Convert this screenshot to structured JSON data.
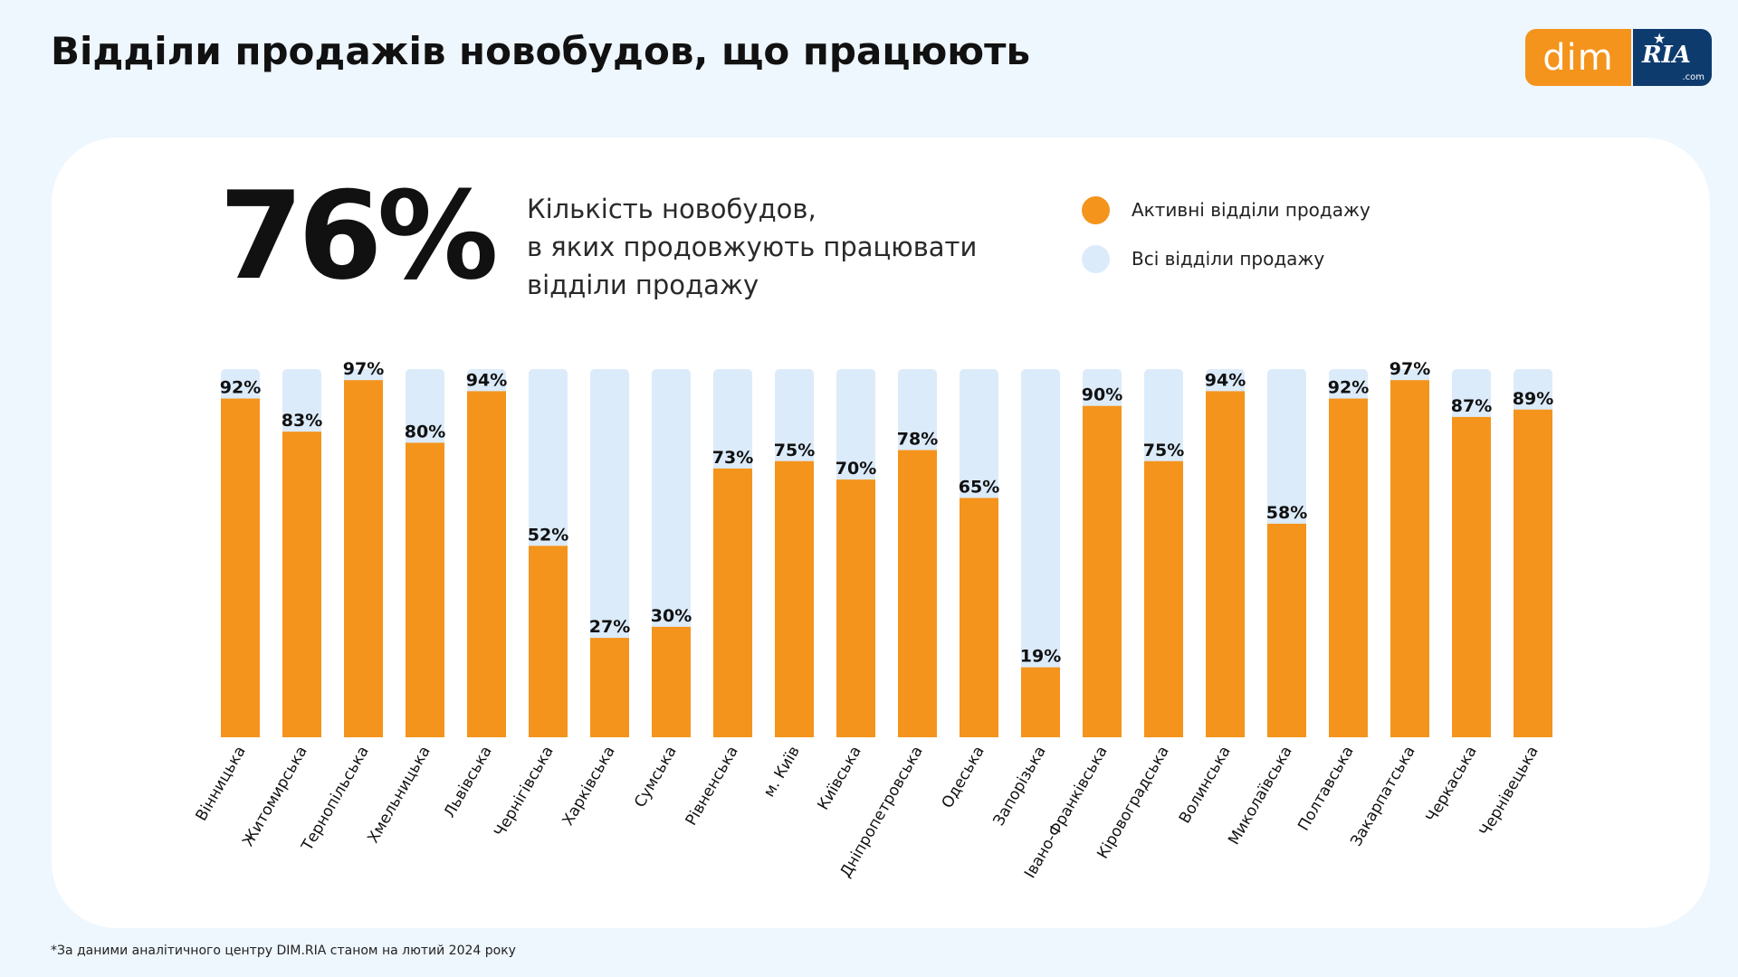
{
  "header": {
    "title": "Відділи продажів новобудов, що працюють"
  },
  "logo": {
    "dim_text": "dim",
    "ria_text": "RIA",
    "ria_suffix": ".com"
  },
  "summary": {
    "big_value": "76%",
    "description": "Кількість новобудов,\nв яких продовжують працювати\nвідділи продажу"
  },
  "legend": {
    "items": [
      {
        "label": "Активні відділи продажу",
        "color": "#f4941c"
      },
      {
        "label": "Всі відділи продажу",
        "color": "#dcebfa"
      }
    ]
  },
  "footnote": "*За даними аналітичного центру DIM.RIA станом на лютий 2024 року",
  "chart_data": {
    "type": "bar",
    "categories": [
      "Вінницька",
      "Житомирська",
      "Тернопільська",
      "Хмельницька",
      "Львівська",
      "Чернігівська",
      "Харківська",
      "Сумська",
      "Рівненська",
      "м. Київ",
      "Київська",
      "Дніпропетровська",
      "Одеська",
      "Запорізька",
      "Івано-Франківська",
      "Кіровоградська",
      "Волинська",
      "Миколаївська",
      "Полтавська",
      "Закарпатська",
      "Черкаська",
      "Чернівецька"
    ],
    "series": [
      {
        "name": "Активні відділи продажу",
        "values": [
          92,
          83,
          97,
          80,
          94,
          52,
          27,
          30,
          73,
          75,
          70,
          78,
          65,
          19,
          90,
          75,
          94,
          58,
          92,
          97,
          87,
          89
        ]
      },
      {
        "name": "Всі відділи продажу",
        "values": [
          100,
          100,
          100,
          100,
          100,
          100,
          100,
          100,
          100,
          100,
          100,
          100,
          100,
          100,
          100,
          100,
          100,
          100,
          100,
          100,
          100,
          100
        ]
      }
    ],
    "data_labels": [
      "92%",
      "83%",
      "97%",
      "80%",
      "94%",
      "52%",
      "27%",
      "30%",
      "73%",
      "75%",
      "70%",
      "78%",
      "65%",
      "19%",
      "90%",
      "75%",
      "94%",
      "58%",
      "92%",
      "97%",
      "87%",
      "89%"
    ],
    "ylim": [
      0,
      100
    ],
    "title": "",
    "xlabel": "",
    "ylabel": "",
    "grid": false,
    "legend_position": "top-right",
    "colors": {
      "active": "#f4941c",
      "total": "#dcebfa",
      "label": "#111111",
      "category": "#111111"
    }
  }
}
